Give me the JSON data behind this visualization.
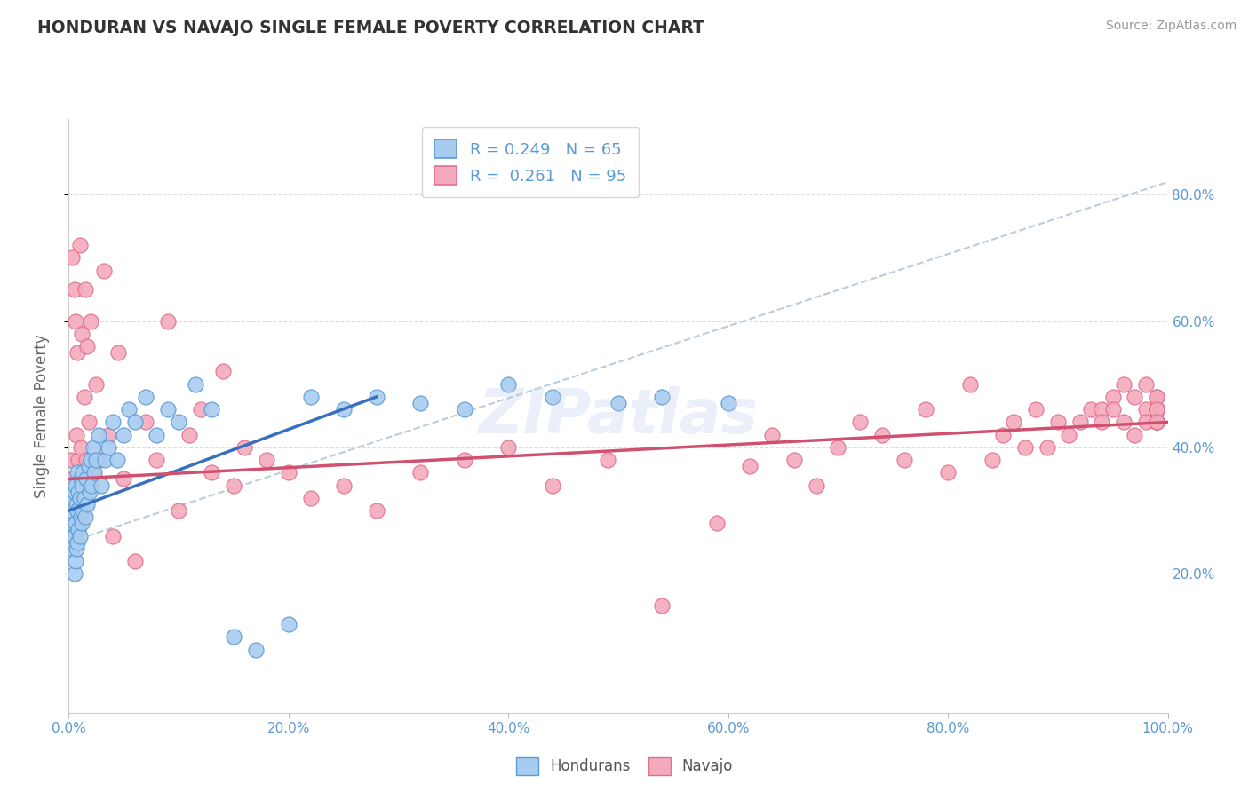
{
  "title": "HONDURAN VS NAVAJO SINGLE FEMALE POVERTY CORRELATION CHART",
  "source": "Source: ZipAtlas.com",
  "ylabel": "Single Female Poverty",
  "xlim": [
    0.0,
    1.0
  ],
  "ylim": [
    -0.02,
    0.92
  ],
  "xticks": [
    0.0,
    0.2,
    0.4,
    0.6,
    0.8,
    1.0
  ],
  "right_yticks": [
    0.2,
    0.4,
    0.6,
    0.8
  ],
  "right_yticklabels": [
    "20.0%",
    "40.0%",
    "60.0%",
    "80.0%"
  ],
  "xticklabels": [
    "0.0%",
    "20.0%",
    "40.0%",
    "60.0%",
    "80.0%",
    "100.0%"
  ],
  "honduran_fill": "#A8CCF0",
  "honduran_edge": "#5B9BD5",
  "navajo_fill": "#F4AABC",
  "navajo_edge": "#E07090",
  "honduran_line": "#3A6FBF",
  "navajo_line": "#D05070",
  "dash_line": "#BBCCDD",
  "R_honduran": 0.249,
  "N_honduran": 65,
  "R_navajo": 0.261,
  "N_navajo": 95,
  "watermark": "ZIPatlas",
  "bg": "#FFFFFF",
  "grid_color": "#DDDDDD",
  "title_color": "#333333",
  "ylabel_color": "#666666",
  "tick_color": "#5B9BD5",
  "legend_color": "#5B9BD5",
  "honduran_x": [
    0.002,
    0.003,
    0.003,
    0.004,
    0.004,
    0.005,
    0.005,
    0.005,
    0.006,
    0.006,
    0.006,
    0.007,
    0.007,
    0.008,
    0.008,
    0.008,
    0.009,
    0.009,
    0.01,
    0.01,
    0.011,
    0.011,
    0.012,
    0.012,
    0.013,
    0.013,
    0.014,
    0.015,
    0.016,
    0.017,
    0.018,
    0.019,
    0.02,
    0.021,
    0.022,
    0.023,
    0.025,
    0.027,
    0.03,
    0.033,
    0.036,
    0.04,
    0.044,
    0.05,
    0.055,
    0.06,
    0.07,
    0.08,
    0.09,
    0.1,
    0.115,
    0.13,
    0.15,
    0.17,
    0.2,
    0.22,
    0.25,
    0.28,
    0.32,
    0.36,
    0.4,
    0.44,
    0.5,
    0.54,
    0.6
  ],
  "honduran_y": [
    0.28,
    0.24,
    0.3,
    0.26,
    0.32,
    0.2,
    0.26,
    0.33,
    0.22,
    0.28,
    0.34,
    0.24,
    0.31,
    0.25,
    0.3,
    0.36,
    0.27,
    0.33,
    0.26,
    0.32,
    0.29,
    0.35,
    0.28,
    0.34,
    0.3,
    0.36,
    0.32,
    0.29,
    0.35,
    0.31,
    0.37,
    0.33,
    0.38,
    0.34,
    0.4,
    0.36,
    0.38,
    0.42,
    0.34,
    0.38,
    0.4,
    0.44,
    0.38,
    0.42,
    0.46,
    0.44,
    0.48,
    0.42,
    0.46,
    0.44,
    0.5,
    0.46,
    0.1,
    0.08,
    0.12,
    0.48,
    0.46,
    0.48,
    0.47,
    0.46,
    0.5,
    0.48,
    0.47,
    0.48,
    0.47
  ],
  "navajo_x": [
    0.002,
    0.003,
    0.004,
    0.005,
    0.006,
    0.007,
    0.008,
    0.009,
    0.01,
    0.011,
    0.012,
    0.013,
    0.014,
    0.015,
    0.016,
    0.017,
    0.018,
    0.02,
    0.022,
    0.025,
    0.028,
    0.032,
    0.036,
    0.04,
    0.045,
    0.05,
    0.06,
    0.07,
    0.08,
    0.09,
    0.1,
    0.11,
    0.12,
    0.13,
    0.14,
    0.15,
    0.16,
    0.18,
    0.2,
    0.22,
    0.25,
    0.28,
    0.32,
    0.36,
    0.4,
    0.44,
    0.49,
    0.54,
    0.59,
    0.62,
    0.64,
    0.66,
    0.68,
    0.7,
    0.72,
    0.74,
    0.76,
    0.78,
    0.8,
    0.82,
    0.84,
    0.85,
    0.86,
    0.87,
    0.88,
    0.89,
    0.9,
    0.91,
    0.92,
    0.93,
    0.94,
    0.94,
    0.95,
    0.95,
    0.96,
    0.96,
    0.97,
    0.97,
    0.98,
    0.98,
    0.98,
    0.99,
    0.99,
    0.99,
    0.99,
    0.99,
    0.99,
    0.99,
    0.99,
    0.99,
    0.99,
    0.99,
    0.99,
    0.99,
    0.99
  ],
  "navajo_y": [
    0.38,
    0.7,
    0.35,
    0.65,
    0.6,
    0.42,
    0.55,
    0.38,
    0.72,
    0.4,
    0.58,
    0.35,
    0.48,
    0.65,
    0.38,
    0.56,
    0.44,
    0.6,
    0.36,
    0.5,
    0.38,
    0.68,
    0.42,
    0.26,
    0.55,
    0.35,
    0.22,
    0.44,
    0.38,
    0.6,
    0.3,
    0.42,
    0.46,
    0.36,
    0.52,
    0.34,
    0.4,
    0.38,
    0.36,
    0.32,
    0.34,
    0.3,
    0.36,
    0.38,
    0.4,
    0.34,
    0.38,
    0.15,
    0.28,
    0.37,
    0.42,
    0.38,
    0.34,
    0.4,
    0.44,
    0.42,
    0.38,
    0.46,
    0.36,
    0.5,
    0.38,
    0.42,
    0.44,
    0.4,
    0.46,
    0.4,
    0.44,
    0.42,
    0.44,
    0.46,
    0.46,
    0.44,
    0.48,
    0.46,
    0.44,
    0.5,
    0.42,
    0.48,
    0.46,
    0.44,
    0.5,
    0.46,
    0.46,
    0.44,
    0.46,
    0.46,
    0.48,
    0.44,
    0.46,
    0.46,
    0.46,
    0.44,
    0.48,
    0.46,
    0.44
  ],
  "honduran_reg": [
    0.0,
    0.3,
    0.28,
    0.48
  ],
  "navajo_reg": [
    0.0,
    0.35,
    1.0,
    0.44
  ],
  "dash_reg": [
    0.0,
    0.25,
    1.0,
    0.82
  ]
}
